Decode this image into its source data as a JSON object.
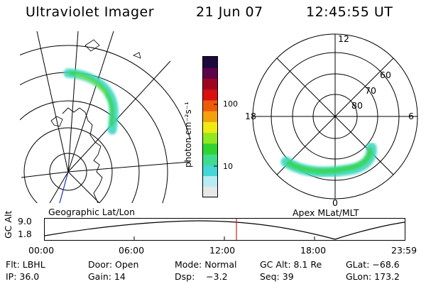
{
  "header": {
    "instrument": "Ultraviolet Imager",
    "date": "21 Jun 07",
    "time": "12:45:55 UT"
  },
  "colorbar": {
    "label": "photon cm⁻²s⁻¹",
    "ticks": [
      "100",
      "10"
    ],
    "colors": [
      "#e8e8e8",
      "#b8ecf2",
      "#45d6d6",
      "#3edc8c",
      "#2fd42f",
      "#8fe820",
      "#f0ea10",
      "#f4a00c",
      "#ee5a0a",
      "#d81010",
      "#9e0620",
      "#5c0448",
      "#1c0a3c"
    ]
  },
  "geo_map": {
    "label": "Geographic Lat/Lon"
  },
  "polar_map": {
    "label": "Apex MLat/MLT",
    "lat_labels": [
      "60",
      "70",
      "80"
    ],
    "mlt_labels": [
      "12",
      "18",
      "6",
      "0"
    ]
  },
  "altitude_plot": {
    "ylabel": "GC Alt",
    "y_ticks": [
      "9.0",
      "1.8"
    ],
    "x_ticks": [
      "00:00",
      "06:00",
      "12:00",
      "18:00",
      "23:59"
    ],
    "marker_color": "#cc2222"
  },
  "info_table": {
    "rows": [
      [
        "Flt: LBHL",
        "Door: Open",
        "Mode: Normal",
        "GC Alt: 8.1 Re",
        "GLat: −68.6"
      ],
      [
        "IP: 36.0",
        "Gain: 14",
        "Dsp:    −3.2",
        "Seq: 39",
        "GLon: 173.2"
      ]
    ]
  }
}
